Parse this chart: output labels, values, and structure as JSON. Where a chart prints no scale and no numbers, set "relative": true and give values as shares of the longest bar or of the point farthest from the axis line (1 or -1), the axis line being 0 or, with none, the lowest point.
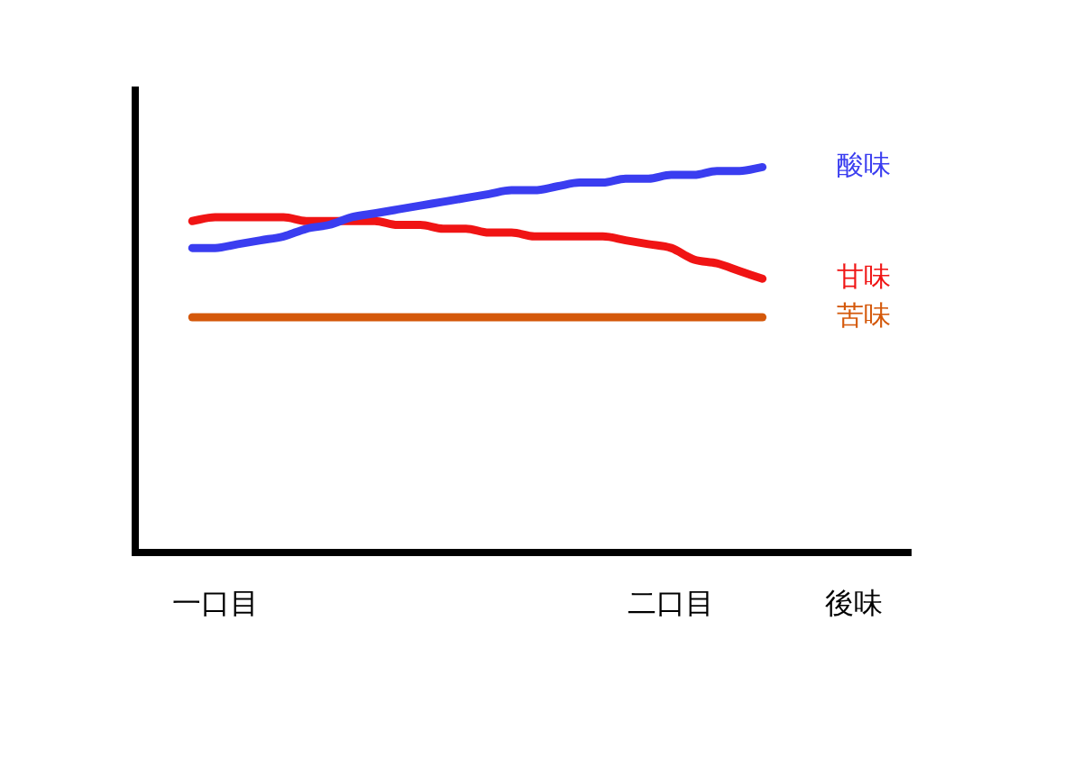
{
  "chart_data": {
    "type": "line",
    "relative": true,
    "legend": false,
    "grid": false,
    "tick_labels": "x",
    "marker": "none",
    "line_style": "solid",
    "categories": [
      null,
      null,
      null,
      "一口目",
      null,
      null,
      null,
      null,
      null,
      null,
      null,
      null,
      null,
      null,
      null,
      null,
      null,
      null,
      null,
      null,
      null,
      null,
      null,
      "二口目",
      null,
      null,
      null,
      null,
      null,
      null,
      null,
      "後味",
      null,
      null
    ],
    "series": [
      {
        "name": "酸味",
        "color": "#3a3df0",
        "values": [
          null,
          null,
          0.79,
          0.79,
          0.8,
          0.81,
          0.82,
          0.84,
          0.85,
          0.87,
          0.88,
          0.89,
          0.9,
          0.91,
          0.92,
          0.93,
          0.94,
          0.94,
          0.95,
          0.96,
          0.96,
          0.97,
          0.97,
          0.98,
          0.98,
          0.99,
          0.99,
          1,
          null,
          null,
          null,
          null,
          null,
          null
        ]
      },
      {
        "name": "甘味",
        "color": "#f01414",
        "values": [
          null,
          null,
          0.86,
          0.87,
          0.87,
          0.87,
          0.87,
          0.86,
          0.86,
          0.86,
          0.86,
          0.85,
          0.85,
          0.84,
          0.84,
          0.83,
          0.83,
          0.82,
          0.82,
          0.82,
          0.82,
          0.81,
          0.8,
          0.79,
          0.76,
          0.75,
          0.73,
          0.71,
          null,
          null,
          null,
          null,
          null,
          null
        ]
      },
      {
        "name": "苦味",
        "color": "#d4580a",
        "values": [
          null,
          null,
          0.61,
          0.61,
          0.61,
          0.61,
          0.61,
          0.61,
          0.61,
          0.61,
          0.61,
          0.61,
          0.61,
          0.61,
          0.61,
          0.61,
          0.61,
          0.61,
          0.61,
          0.61,
          0.61,
          0.61,
          0.61,
          0.61,
          0.61,
          0.61,
          0.61,
          0.61,
          null,
          null,
          null,
          null,
          null,
          null
        ]
      }
    ]
  }
}
